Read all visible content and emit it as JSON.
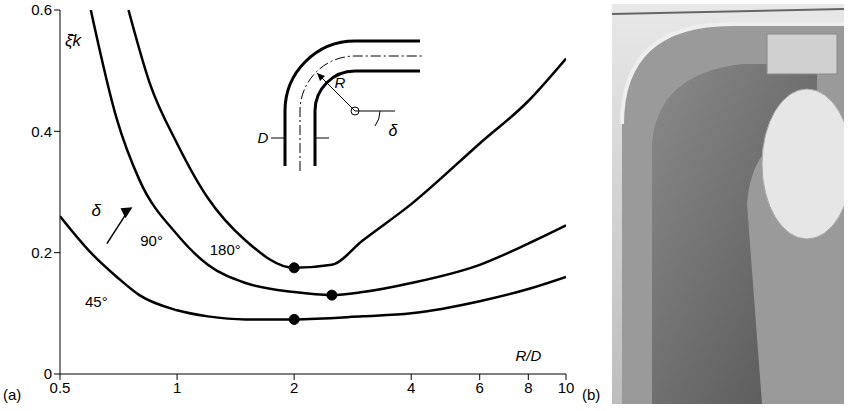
{
  "chart_data": {
    "type": "line",
    "x_label": "R/D",
    "y_label": "ξ̄k",
    "log": "x",
    "grid": false,
    "xlim": [
      0.5,
      10
    ],
    "xticks": [
      0.5,
      1,
      2,
      4,
      6,
      8,
      10
    ],
    "ylim": [
      0,
      0.6
    ],
    "yticks": [
      0,
      0.2,
      0.4,
      0.6
    ],
    "annotation": "δ",
    "inset_labels": [
      "D",
      "R",
      "δ"
    ],
    "panel_labels": [
      "(a)",
      "(b)"
    ],
    "series": [
      {
        "name": "45°",
        "color": "#000000",
        "line_style": "solid",
        "x": [
          0.5,
          0.6,
          0.7,
          0.8,
          1,
          1.2,
          1.5,
          2,
          3,
          4,
          6,
          8,
          10
        ],
        "values": [
          0.26,
          0.2,
          0.16,
          0.13,
          0.105,
          0.095,
          0.09,
          0.09,
          0.095,
          0.1,
          0.12,
          0.14,
          0.16
        ],
        "minimum": {
          "x": 2,
          "y": 0.09
        }
      },
      {
        "name": "90°",
        "color": "#000000",
        "line_style": "solid",
        "x": [
          0.6,
          0.7,
          0.8,
          1,
          1.2,
          1.5,
          2,
          2.5,
          3,
          4,
          6,
          8,
          10
        ],
        "values": [
          0.6,
          0.42,
          0.32,
          0.23,
          0.18,
          0.15,
          0.135,
          0.13,
          0.135,
          0.15,
          0.18,
          0.215,
          0.245
        ],
        "minimum": {
          "x": 2.5,
          "y": 0.13
        }
      },
      {
        "name": "180°",
        "color": "#000000",
        "line_style": "solid",
        "x": [
          0.75,
          0.85,
          1,
          1.2,
          1.5,
          2,
          2.5,
          3,
          4,
          6,
          8,
          10
        ],
        "values": [
          0.6,
          0.48,
          0.38,
          0.29,
          0.22,
          0.175,
          0.18,
          0.22,
          0.28,
          0.38,
          0.45,
          0.52
        ],
        "minimum": {
          "x": 2,
          "y": 0.175
        }
      }
    ]
  }
}
